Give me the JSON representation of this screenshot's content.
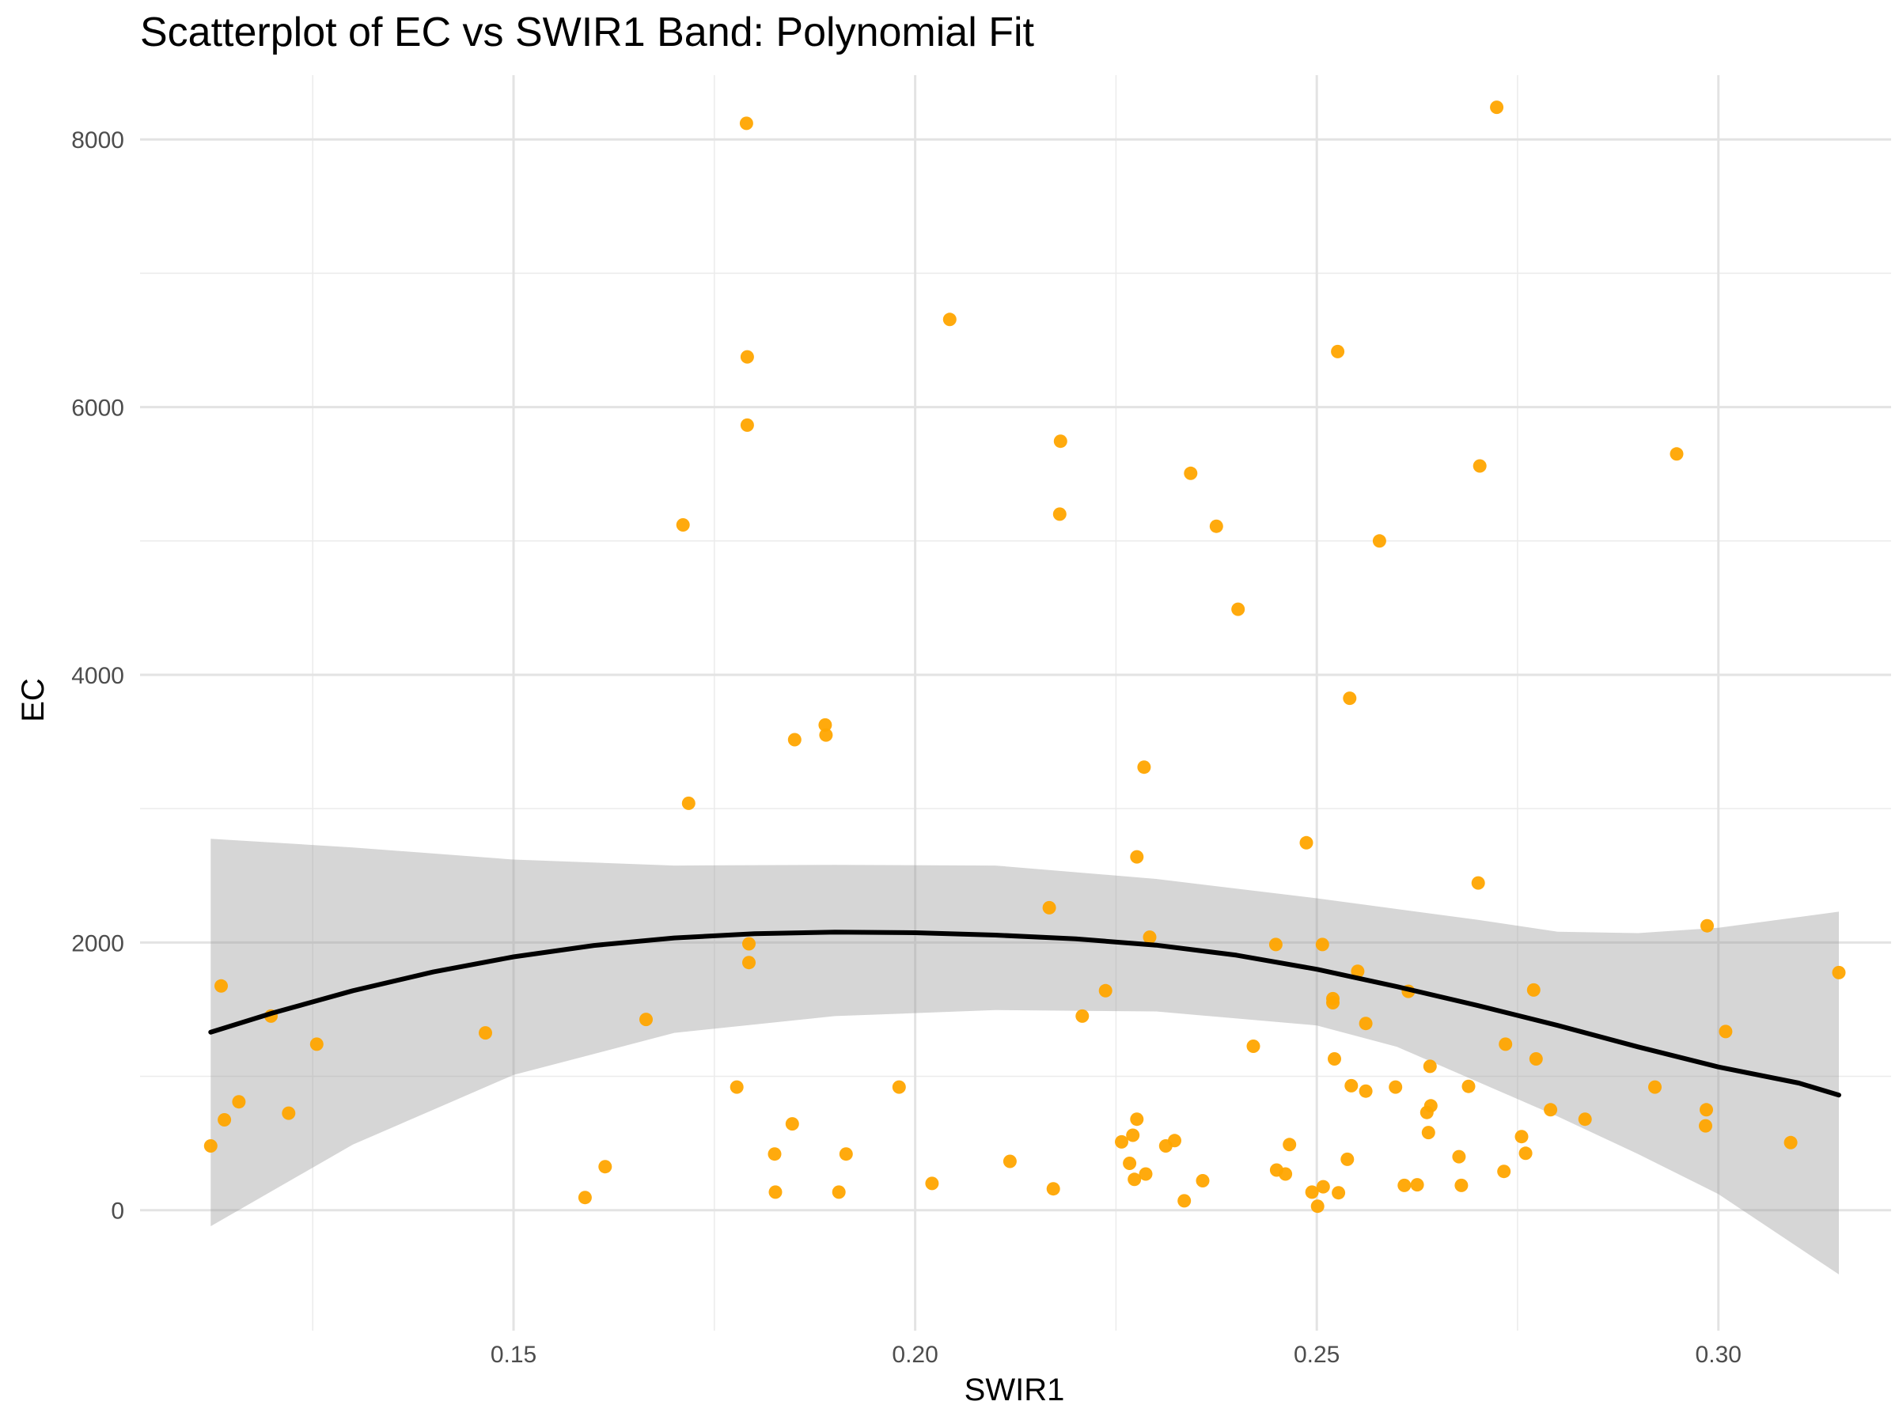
{
  "chart_data": {
    "type": "scatter",
    "title": "Scatterplot of EC vs SWIR1 Band: Polynomial Fit",
    "xlabel": "SWIR1",
    "ylabel": "EC",
    "xlim": [
      0.1035,
      0.3215
    ],
    "ylim": [
      -900,
      8480
    ],
    "x_ticks": [
      0.15,
      0.2,
      0.25,
      0.3
    ],
    "x_tick_labels": [
      "0.15",
      "0.20",
      "0.25",
      "0.30"
    ],
    "y_ticks": [
      0,
      2000,
      4000,
      6000,
      8000
    ],
    "y_tick_labels": [
      "0",
      "2000",
      "4000",
      "6000",
      "8000"
    ],
    "x_minor": [
      0.125,
      0.175,
      0.225,
      0.275
    ],
    "y_minor": [
      1000,
      3000,
      5000,
      7000
    ],
    "grid": true,
    "point_color": "#FFA500",
    "fit_color": "#000000",
    "ribbon_color": "#999999",
    "points": [
      [
        0.1123,
        480
      ],
      [
        0.1136,
        1675
      ],
      [
        0.114,
        675
      ],
      [
        0.1158,
        810
      ],
      [
        0.1198,
        1450
      ],
      [
        0.122,
        725
      ],
      [
        0.1255,
        1240
      ],
      [
        0.1465,
        1325
      ],
      [
        0.1589,
        95
      ],
      [
        0.1614,
        325
      ],
      [
        0.1665,
        1425
      ],
      [
        0.1711,
        5120
      ],
      [
        0.1718,
        3040
      ],
      [
        0.1778,
        920
      ],
      [
        0.179,
        8120
      ],
      [
        0.1791,
        6375
      ],
      [
        0.1791,
        5865
      ],
      [
        0.1793,
        1990
      ],
      [
        0.1793,
        1850
      ],
      [
        0.1825,
        420
      ],
      [
        0.1826,
        135
      ],
      [
        0.1847,
        645
      ],
      [
        0.185,
        3515
      ],
      [
        0.1888,
        3625
      ],
      [
        0.1889,
        3550
      ],
      [
        0.1905,
        135
      ],
      [
        0.1914,
        420
      ],
      [
        0.198,
        920
      ],
      [
        0.2021,
        200
      ],
      [
        0.2043,
        6655
      ],
      [
        0.2118,
        365
      ],
      [
        0.2167,
        2260
      ],
      [
        0.2172,
        160
      ],
      [
        0.218,
        5200
      ],
      [
        0.2181,
        5745
      ],
      [
        0.2208,
        1450
      ],
      [
        0.2237,
        1640
      ],
      [
        0.2257,
        510
      ],
      [
        0.2267,
        350
      ],
      [
        0.2271,
        560
      ],
      [
        0.2273,
        230
      ],
      [
        0.2276,
        2640
      ],
      [
        0.2276,
        680
      ],
      [
        0.2285,
        3310
      ],
      [
        0.2287,
        270
      ],
      [
        0.2292,
        2040
      ],
      [
        0.2312,
        480
      ],
      [
        0.2323,
        520
      ],
      [
        0.2335,
        70
      ],
      [
        0.2343,
        5505
      ],
      [
        0.2358,
        220
      ],
      [
        0.2375,
        5110
      ],
      [
        0.2402,
        4490
      ],
      [
        0.2421,
        1225
      ],
      [
        0.2449,
        1985
      ],
      [
        0.245,
        300
      ],
      [
        0.2461,
        270
      ],
      [
        0.2466,
        490
      ],
      [
        0.2487,
        2745
      ],
      [
        0.2494,
        135
      ],
      [
        0.2501,
        30
      ],
      [
        0.2507,
        1985
      ],
      [
        0.2508,
        175
      ],
      [
        0.252,
        1580
      ],
      [
        0.252,
        1550
      ],
      [
        0.2522,
        1130
      ],
      [
        0.2526,
        6415
      ],
      [
        0.2527,
        130
      ],
      [
        0.2538,
        380
      ],
      [
        0.2541,
        3825
      ],
      [
        0.2543,
        930
      ],
      [
        0.2551,
        1785
      ],
      [
        0.2561,
        1395
      ],
      [
        0.2561,
        890
      ],
      [
        0.2578,
        5000
      ],
      [
        0.2598,
        920
      ],
      [
        0.2609,
        185
      ],
      [
        0.2614,
        1635
      ],
      [
        0.2625,
        190
      ],
      [
        0.2637,
        730
      ],
      [
        0.2639,
        580
      ],
      [
        0.2641,
        1075
      ],
      [
        0.2642,
        780
      ],
      [
        0.2677,
        400
      ],
      [
        0.268,
        185
      ],
      [
        0.2689,
        925
      ],
      [
        0.2701,
        2445
      ],
      [
        0.2703,
        5560
      ],
      [
        0.2724,
        8240
      ],
      [
        0.2733,
        290
      ],
      [
        0.2735,
        1240
      ],
      [
        0.2755,
        550
      ],
      [
        0.276,
        425
      ],
      [
        0.277,
        1645
      ],
      [
        0.2773,
        1130
      ],
      [
        0.2791,
        750
      ],
      [
        0.2834,
        680
      ],
      [
        0.2921,
        920
      ],
      [
        0.2948,
        5650
      ],
      [
        0.2984,
        630
      ],
      [
        0.2985,
        750
      ],
      [
        0.2986,
        2125
      ],
      [
        0.3009,
        1335
      ],
      [
        0.309,
        505
      ],
      [
        0.315,
        1775
      ]
    ],
    "fit_curve": [
      [
        0.1123,
        1330
      ],
      [
        0.12,
        1473
      ],
      [
        0.13,
        1640
      ],
      [
        0.14,
        1780
      ],
      [
        0.15,
        1893
      ],
      [
        0.16,
        1978
      ],
      [
        0.17,
        2034
      ],
      [
        0.18,
        2066
      ],
      [
        0.19,
        2077
      ],
      [
        0.2,
        2073
      ],
      [
        0.21,
        2055
      ],
      [
        0.22,
        2027
      ],
      [
        0.23,
        1980
      ],
      [
        0.24,
        1905
      ],
      [
        0.25,
        1800
      ],
      [
        0.26,
        1670
      ],
      [
        0.27,
        1530
      ],
      [
        0.28,
        1380
      ],
      [
        0.29,
        1220
      ],
      [
        0.3,
        1070
      ],
      [
        0.31,
        950
      ],
      [
        0.315,
        860
      ]
    ],
    "ribbon_upper": [
      [
        0.1123,
        2775
      ],
      [
        0.13,
        2710
      ],
      [
        0.15,
        2620
      ],
      [
        0.17,
        2575
      ],
      [
        0.19,
        2580
      ],
      [
        0.21,
        2575
      ],
      [
        0.23,
        2475
      ],
      [
        0.25,
        2330
      ],
      [
        0.27,
        2170
      ],
      [
        0.28,
        2080
      ],
      [
        0.29,
        2070
      ],
      [
        0.3,
        2110
      ],
      [
        0.315,
        2230
      ]
    ],
    "ribbon_lower": [
      [
        0.1123,
        -120
      ],
      [
        0.13,
        490
      ],
      [
        0.15,
        1010
      ],
      [
        0.17,
        1325
      ],
      [
        0.19,
        1450
      ],
      [
        0.21,
        1495
      ],
      [
        0.23,
        1485
      ],
      [
        0.25,
        1380
      ],
      [
        0.26,
        1220
      ],
      [
        0.27,
        960
      ],
      [
        0.28,
        700
      ],
      [
        0.29,
        420
      ],
      [
        0.3,
        120
      ],
      [
        0.315,
        -480
      ]
    ]
  }
}
